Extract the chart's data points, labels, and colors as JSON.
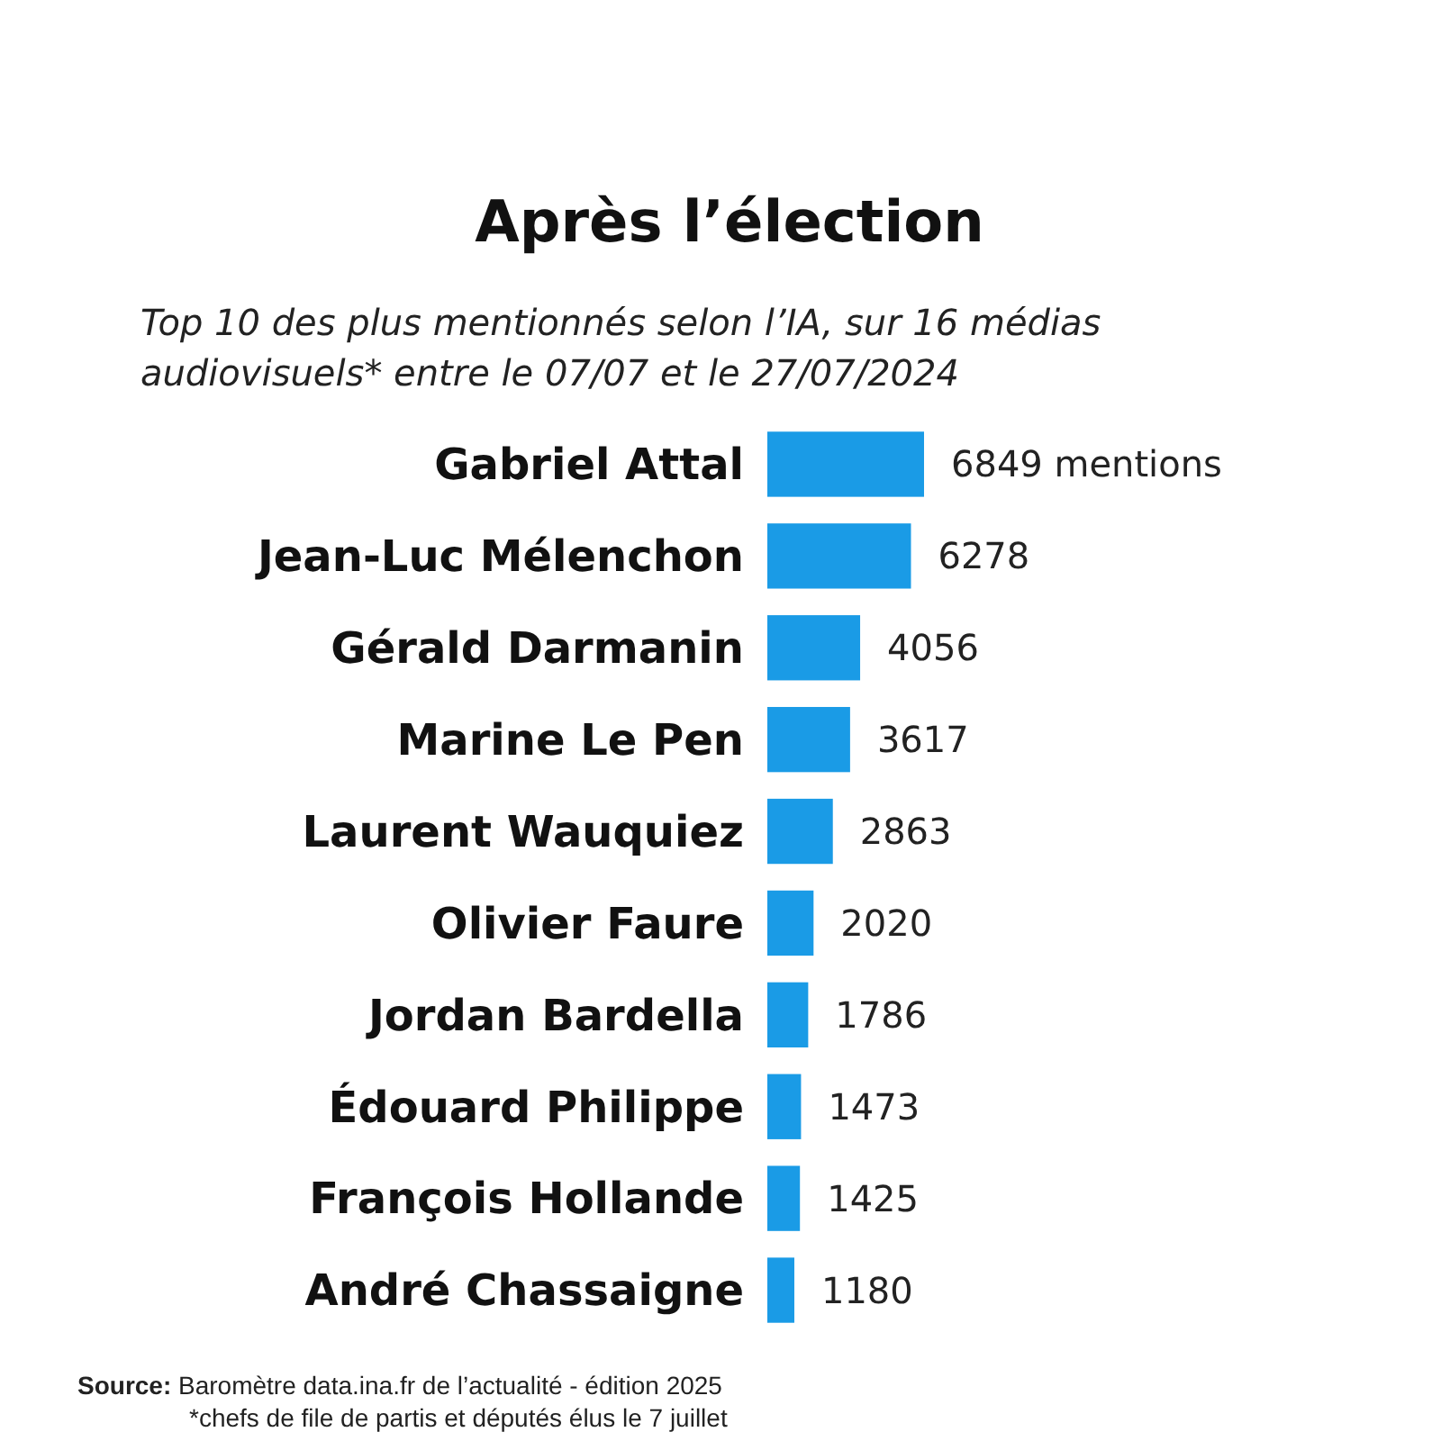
{
  "chart_data": {
    "type": "bar",
    "orientation": "horizontal",
    "title": "Après l’élection",
    "subtitle": "Top 10 des plus mentionnés selon l’IA, sur 16 médias audiovisuels* entre le 07/07 et le 27/07/2024",
    "categories": [
      "Gabriel Attal",
      "Jean-Luc Mélenchon",
      "Gérald Darmanin",
      "Marine Le Pen",
      "Laurent Wauquiez",
      "Olivier Faure",
      "Jordan Bardella",
      "Édouard Philippe",
      "François Hollande",
      "André Chassaigne"
    ],
    "values": [
      6849,
      6278,
      4056,
      3617,
      2863,
      2020,
      1786,
      1473,
      1425,
      1180
    ],
    "value_labels": [
      "6849 mentions",
      "6278",
      "4056",
      "3617",
      "2863",
      "2020",
      "1786",
      "1473",
      "1425",
      "1180"
    ],
    "color": "#1a9be6",
    "annotations": [
      "Source: Baromètre data.ina.fr de l’actualité - édition 2025",
      "*chefs de file de partis et députés élus le 7 juillet"
    ]
  }
}
